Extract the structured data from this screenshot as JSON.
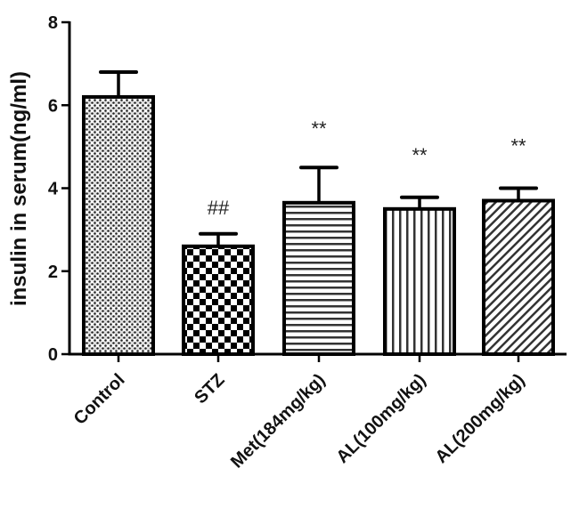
{
  "chart_data": {
    "type": "bar",
    "title": "",
    "xlabel": "",
    "ylabel": "insulin in serum(ng/ml)",
    "ylim": [
      0,
      8
    ],
    "yticks": [
      "0",
      "2",
      "4",
      "6",
      "8"
    ],
    "grid": false,
    "legend": null,
    "categories": [
      "Control",
      "STZ",
      "Met(184mg/kg)",
      "AL(100mg/kg)",
      "AL(200mg/kg)"
    ],
    "values": [
      6.2,
      2.6,
      3.65,
      3.5,
      3.7
    ],
    "error_upper": [
      0.6,
      0.3,
      0.85,
      0.28,
      0.3
    ],
    "annotations": [
      "",
      "##",
      "**",
      "**",
      "**"
    ],
    "patterns": [
      "fine-dots",
      "checkerboard",
      "horizontal-lines",
      "vertical-lines",
      "diagonal-lines"
    ]
  }
}
